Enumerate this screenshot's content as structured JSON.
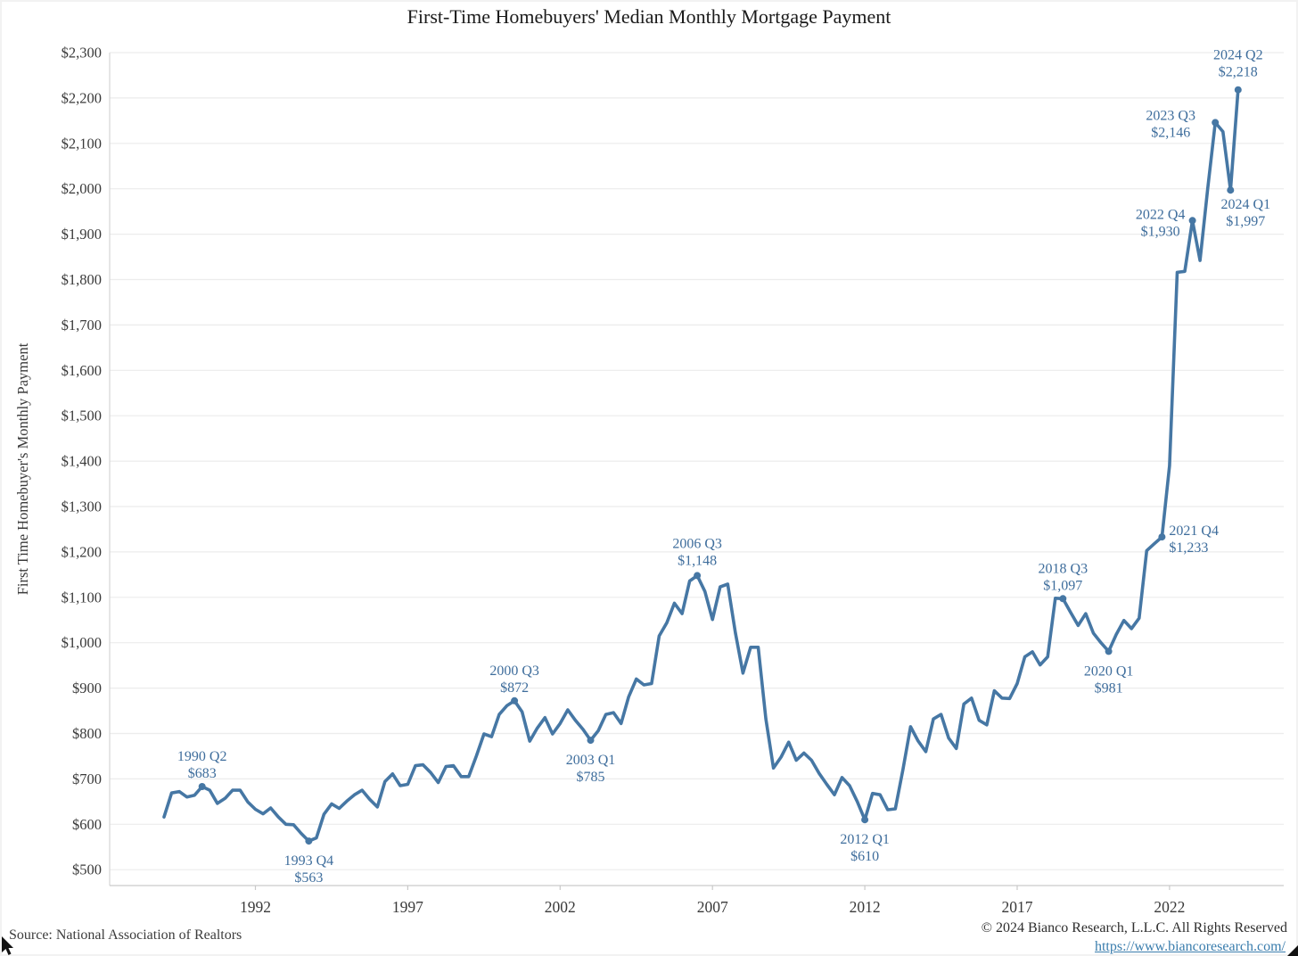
{
  "page": {
    "title": "First-Time Homebuyers' Median Monthly Mortgage Payment"
  },
  "footer": {
    "source": "Source: National Association of Realtors",
    "copyright": "© 2024 Bianco Research, L.L.C. All Rights Reserved",
    "url": "https://www.biancoresearch.com/"
  },
  "colors": {
    "line": "#4677a4",
    "annotation": "#3e6d9c",
    "axis_text": "#3a3a3a",
    "grid": "#ececec",
    "axis_border": "#d6d6d6",
    "bottom_axis": "#c9c9c9",
    "title": "#1b1b1b",
    "url": "#3a7dad",
    "source_text": "#3c3c3c"
  },
  "chart_data": {
    "type": "line",
    "title": "First-Time Homebuyers' Median Monthly Mortgage Payment",
    "xlabel": "",
    "ylabel": "First Time Homebuyer's Monthly Payment",
    "grid": "horizontal",
    "legend": "none",
    "start_quarter": "1989 Q1",
    "end_quarter": "2024 Q2",
    "frequency": "quarterly",
    "ylim": [
      465,
      2300
    ],
    "y_ticks": [
      500,
      600,
      700,
      800,
      900,
      1000,
      1100,
      1200,
      1300,
      1400,
      1500,
      1600,
      1700,
      1800,
      1900,
      2000,
      2100,
      2200,
      2300
    ],
    "y_tick_prefix": "$",
    "x_ticks": [
      1992,
      1997,
      2002,
      2007,
      2012,
      2017,
      2022
    ],
    "values": [
      616,
      669,
      672,
      660,
      664,
      683,
      675,
      646,
      657,
      675,
      675,
      649,
      633,
      623,
      636,
      616,
      600,
      599,
      580,
      563,
      570,
      622,
      645,
      635,
      651,
      665,
      675,
      655,
      638,
      694,
      711,
      685,
      688,
      729,
      731,
      714,
      692,
      727,
      729,
      705,
      705,
      750,
      799,
      793,
      842,
      861,
      872,
      848,
      783,
      812,
      835,
      799,
      822,
      852,
      829,
      809,
      785,
      806,
      842,
      846,
      822,
      881,
      920,
      907,
      910,
      1015,
      1044,
      1087,
      1064,
      1136,
      1148,
      1113,
      1051,
      1123,
      1129,
      1022,
      933,
      990,
      990,
      832,
      724,
      748,
      781,
      741,
      757,
      741,
      712,
      688,
      665,
      703,
      685,
      650,
      610,
      668,
      665,
      632,
      634,
      721,
      815,
      783,
      760,
      832,
      842,
      790,
      767,
      865,
      878,
      829,
      819,
      894,
      878,
      877,
      910,
      969,
      980,
      951,
      969,
      1098,
      1097,
      1067,
      1038,
      1064,
      1021,
      1000,
      981,
      1018,
      1049,
      1031,
      1054,
      1203,
      1218,
      1233,
      1390,
      1816,
      1818,
      1930,
      1842,
      2000,
      2146,
      2126,
      1997,
      2218
    ],
    "annotations": [
      {
        "label": "1990 Q2",
        "value_label": "$683",
        "year": 1990,
        "quarter": 2,
        "value": 683,
        "placement": "above",
        "anchor": "middle",
        "dx": 0,
        "dy1": -29,
        "dy2": -10
      },
      {
        "label": "1993 Q4",
        "value_label": "$563",
        "year": 1993,
        "quarter": 4,
        "value": 563,
        "placement": "below",
        "anchor": "middle",
        "dx": 0,
        "dy1": 27,
        "dy2": 46
      },
      {
        "label": "2000 Q3",
        "value_label": "$872",
        "year": 2000,
        "quarter": 3,
        "value": 872,
        "placement": "above",
        "anchor": "middle",
        "dx": 0,
        "dy1": -29,
        "dy2": -10
      },
      {
        "label": "2003 Q1",
        "value_label": "$785",
        "year": 2003,
        "quarter": 1,
        "value": 785,
        "placement": "below",
        "anchor": "middle",
        "dx": 0,
        "dy1": 27,
        "dy2": 46
      },
      {
        "label": "2006 Q3",
        "value_label": "$1,148",
        "year": 2006,
        "quarter": 3,
        "value": 1148,
        "placement": "above",
        "anchor": "middle",
        "dx": 0,
        "dy1": -31,
        "dy2": -12
      },
      {
        "label": "2012 Q1",
        "value_label": "$610",
        "year": 2012,
        "quarter": 1,
        "value": 610,
        "placement": "below",
        "anchor": "middle",
        "dx": 0,
        "dy1": 27,
        "dy2": 46
      },
      {
        "label": "2018 Q3",
        "value_label": "$1,097",
        "year": 2018,
        "quarter": 3,
        "value": 1097,
        "placement": "above",
        "anchor": "middle",
        "dx": 0,
        "dy1": -29,
        "dy2": -10
      },
      {
        "label": "2020 Q1",
        "value_label": "$981",
        "year": 2020,
        "quarter": 1,
        "value": 981,
        "placement": "below",
        "anchor": "middle",
        "dx": 0,
        "dy1": 27,
        "dy2": 46
      },
      {
        "label": "2021 Q4",
        "value_label": "$1,233",
        "year": 2021,
        "quarter": 4,
        "value": 1233,
        "placement": "right",
        "anchor": "start",
        "dx": 8,
        "dy1": -2,
        "dy2": 17
      },
      {
        "label": "2022 Q4",
        "value_label": "$1,930",
        "year": 2022,
        "quarter": 4,
        "value": 1930,
        "placement": "left",
        "anchor": "middle",
        "dx": -36,
        "dy1": -2,
        "dy2": 17
      },
      {
        "label": "2023 Q3",
        "value_label": "$2,146",
        "year": 2023,
        "quarter": 3,
        "value": 2146,
        "placement": "left",
        "anchor": "middle",
        "dx": -50,
        "dy1": -3,
        "dy2": 16
      },
      {
        "label": "2024 Q1",
        "value_label": "$1,997",
        "year": 2024,
        "quarter": 1,
        "value": 1997,
        "placement": "right",
        "anchor": "middle",
        "dx": 17,
        "dy1": 21,
        "dy2": 40
      },
      {
        "label": "2024 Q2",
        "value_label": "$2,218",
        "year": 2024,
        "quarter": 2,
        "value": 2218,
        "placement": "above",
        "anchor": "middle",
        "dx": 0,
        "dy1": -34,
        "dy2": -15
      }
    ]
  }
}
